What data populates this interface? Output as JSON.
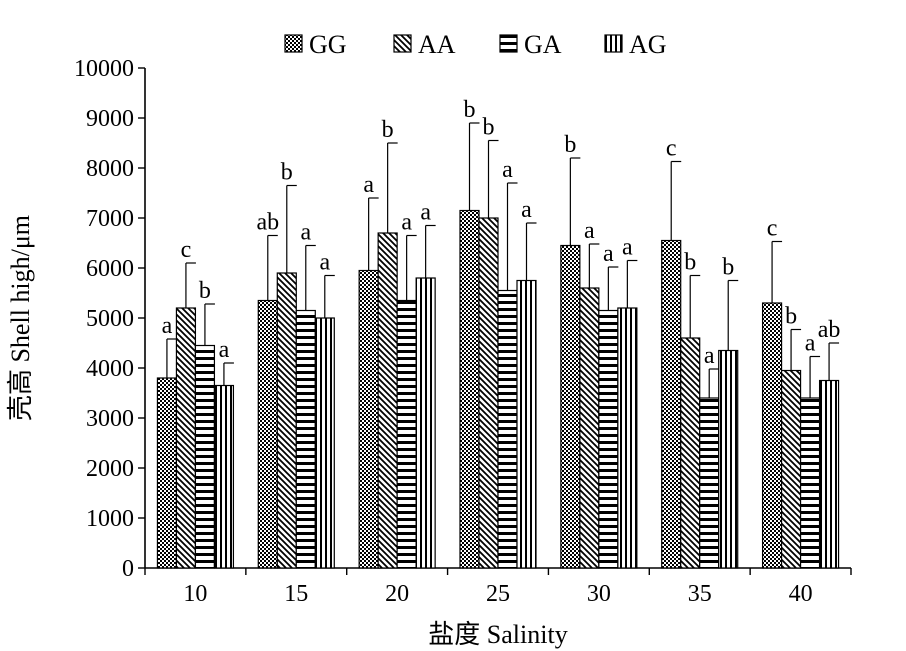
{
  "chart_data": {
    "type": "bar",
    "title": "",
    "xlabel": "盐度 Salinity",
    "ylabel": "壳高 Shell high/μm",
    "ylim": [
      0,
      10000
    ],
    "yticks": [
      0,
      1000,
      2000,
      3000,
      4000,
      5000,
      6000,
      7000,
      8000,
      9000,
      10000
    ],
    "categories": [
      "10",
      "15",
      "20",
      "25",
      "30",
      "35",
      "40"
    ],
    "legend_position": "top-center",
    "grid": false,
    "series": [
      {
        "name": "GG",
        "pattern": "checker",
        "values": [
          3800,
          5350,
          5950,
          7150,
          6450,
          6550,
          5300
        ],
        "errors": [
          780,
          1300,
          1450,
          1750,
          1750,
          1580,
          1230
        ],
        "labels": [
          "a",
          "ab",
          "a",
          "b",
          "b",
          "c",
          "c"
        ]
      },
      {
        "name": "AA",
        "pattern": "diagonal",
        "values": [
          5200,
          5900,
          6700,
          7000,
          5600,
          4600,
          3950
        ],
        "errors": [
          900,
          1750,
          1800,
          1550,
          880,
          1250,
          820
        ],
        "labels": [
          "c",
          "b",
          "b",
          "b",
          "a",
          "b",
          "b"
        ]
      },
      {
        "name": "GA",
        "pattern": "horizontal",
        "values": [
          4450,
          5150,
          5350,
          5550,
          5150,
          3400,
          3400
        ],
        "errors": [
          830,
          1300,
          1300,
          2150,
          870,
          580,
          830
        ],
        "labels": [
          "b",
          "a",
          "a",
          "a",
          "a",
          "a",
          "a"
        ]
      },
      {
        "name": "AG",
        "pattern": "vertical",
        "values": [
          3650,
          5000,
          5800,
          5750,
          5200,
          4350,
          3750
        ],
        "errors": [
          450,
          850,
          1050,
          1150,
          950,
          1400,
          750
        ],
        "labels": [
          "a",
          "a",
          "a",
          "a",
          "a",
          "b",
          "ab"
        ]
      }
    ]
  }
}
